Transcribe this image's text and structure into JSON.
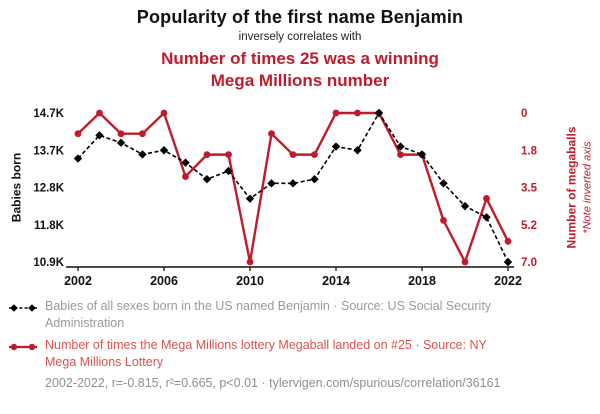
{
  "header": {
    "title": "Popularity of the first name Benjamin",
    "subtitle": "inversely correlates with",
    "red_title_line1": "Number of times 25 was a winning",
    "red_title_line2": "Mega Millions number"
  },
  "colors": {
    "brand_red": "#bf1b2c",
    "legend_red": "#d9534f",
    "legend_gray": "#9a9a9a",
    "footer_gray": "#8f8f8f",
    "series_black": "#000000"
  },
  "chart_data": {
    "type": "line",
    "title": "Popularity of the first name Benjamin inversely correlates with Number of times 25 was a winning Mega Millions number",
    "x": [
      2002,
      2003,
      2004,
      2005,
      2006,
      2007,
      2008,
      2009,
      2010,
      2011,
      2012,
      2013,
      2014,
      2015,
      2016,
      2017,
      2018,
      2019,
      2020,
      2021,
      2022
    ],
    "x_ticks": [
      "2002",
      "2006",
      "2010",
      "2014",
      "2018",
      "2022"
    ],
    "left_axis": {
      "label": "Babies born",
      "ticks": [
        "14.7K",
        "13.7K",
        "12.8K",
        "11.8K",
        "10.9K"
      ],
      "tick_values": [
        14.7,
        13.7,
        12.8,
        11.8,
        10.9
      ],
      "units": "thousands of babies"
    },
    "right_axis": {
      "label": "Number of megaballs",
      "note": "*Note inverted axis",
      "ticks": [
        "0",
        "1.8",
        "3.5",
        "5.2",
        "7.0"
      ],
      "tick_values": [
        0,
        1.8,
        3.5,
        5.2,
        7.0
      ],
      "inverted": true
    },
    "series": [
      {
        "id": "benjamin",
        "name": "Babies of all sexes born in the US named Benjamin",
        "axis": "left",
        "color": "#000000",
        "line": "dashed",
        "marker": "diamond",
        "values": [
          13.5,
          14.1,
          13.9,
          13.6,
          13.7,
          13.4,
          13.0,
          13.2,
          12.5,
          12.9,
          12.9,
          13.0,
          13.8,
          13.7,
          14.7,
          13.8,
          13.6,
          12.9,
          12.3,
          12.0,
          10.9
        ]
      },
      {
        "id": "megaball",
        "name": "Number of times the Mega Millions lottery Megaball landed on #25",
        "axis": "right",
        "color": "#bf1b2c",
        "line": "solid",
        "marker": "circle",
        "values": [
          1,
          0,
          1,
          1,
          0,
          3,
          2,
          2,
          7,
          1,
          2,
          2,
          0,
          0,
          0,
          2,
          2,
          5,
          7,
          4,
          6
        ]
      }
    ],
    "grid": false,
    "legend_position": "bottom"
  },
  "legend": {
    "entries": [
      {
        "label": "Babies of all sexes born in the US named Benjamin · Source: US Social Security Administration"
      },
      {
        "label": "Number of times the Mega Millions lottery Megaball landed on #25 · Source: NY Mega Millions Lottery"
      }
    ],
    "footer": "2002-2022, r=-0.815, r²=0.665, p<0.01 · tylervigen.com/spurious/correlation/36161"
  }
}
